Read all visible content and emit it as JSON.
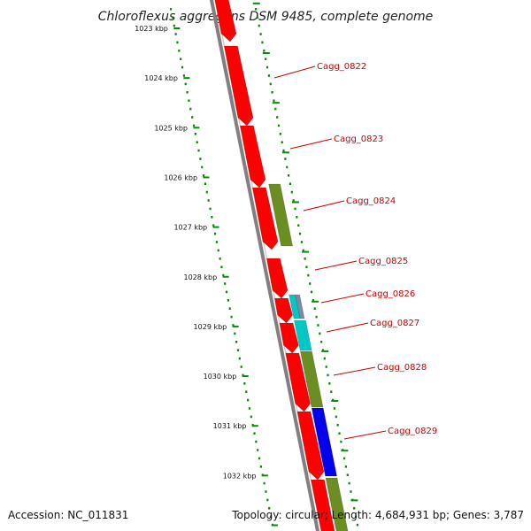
{
  "title": "Chloroflexus aggregans DSM 9485, complete genome",
  "footer": {
    "accession": "Accession: NC_011831",
    "topology": "Topology: circular; Length: 4,684,931 bp; Genes: 3,787"
  },
  "scale": {
    "unit": "kbp",
    "ticks": [
      "1023 kbp",
      "1024 kbp",
      "1025 kbp",
      "1026 kbp",
      "1027 kbp",
      "1028 kbp",
      "1029 kbp",
      "1030 kbp",
      "1031 kbp",
      "1032 kbp"
    ]
  },
  "genes": [
    {
      "label": "Cagg_0822"
    },
    {
      "label": "Cagg_0823"
    },
    {
      "label": "Cagg_0824"
    },
    {
      "label": "Cagg_0825"
    },
    {
      "label": "Cagg_0826"
    },
    {
      "label": "Cagg_0827"
    },
    {
      "label": "Cagg_0828"
    },
    {
      "label": "Cagg_0829"
    }
  ],
  "colors": {
    "forward_strand": "#ff0000",
    "olive": "#6b8e23",
    "cyan": "#00c8c8",
    "blue": "#0000ee",
    "slate": "#7a8aa0",
    "backbone": "#808080",
    "ticks": "#0a8a0a",
    "label": "#cc0000"
  }
}
